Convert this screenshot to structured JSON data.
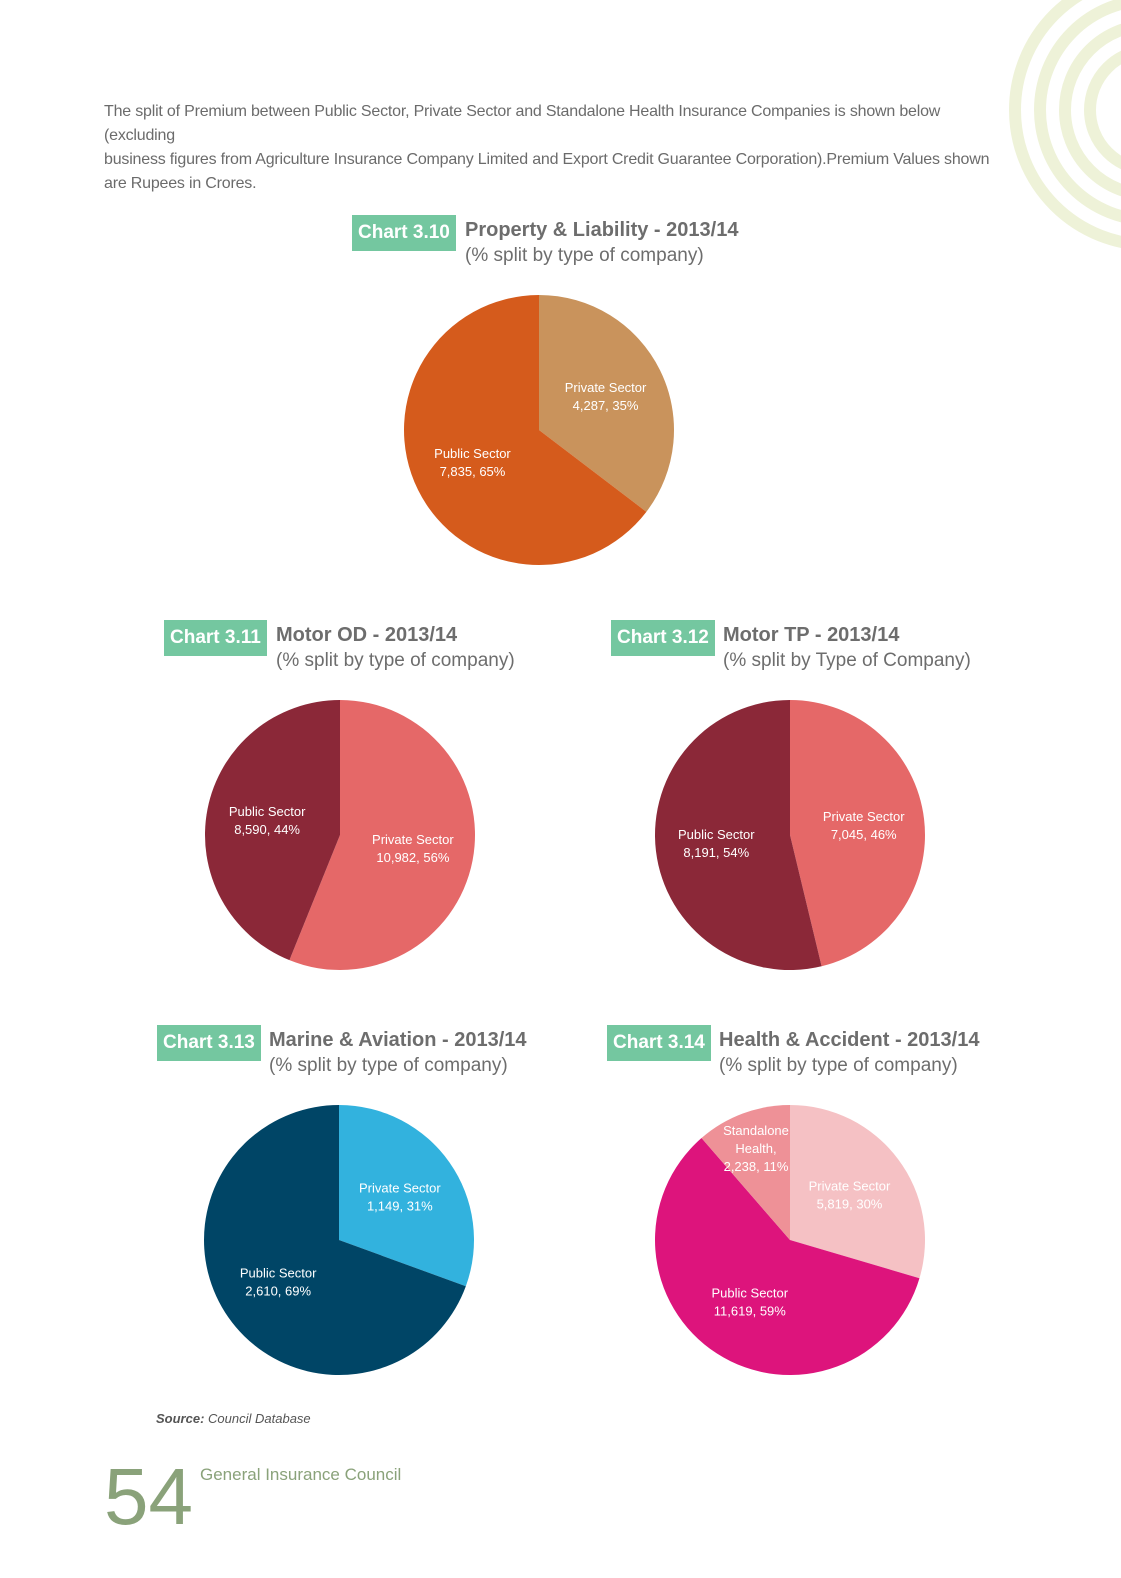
{
  "intro": {
    "line1": "The split of Premium between Public Sector, Private Sector and Standalone Health Insurance Companies is shown below (excluding",
    "line2": "business figures from Agriculture Insurance Company Limited and Export Credit Guarantee Corporation).Premium Values shown",
    "line3": "are Rupees in Crores."
  },
  "chart_data": [
    {
      "type": "pie",
      "badge": "Chart 3.10",
      "title": "Property & Liability - 2013/14",
      "subtitle": "(% split by type of company)",
      "slices": [
        {
          "name": "Private Sector",
          "value": 4287,
          "pct": 35,
          "label": "4,287, 35%",
          "color": "#c9935c"
        },
        {
          "name": "Public Sector",
          "value": 7835,
          "pct": 65,
          "label": "7,835, 65%",
          "color": "#d55b1c"
        }
      ]
    },
    {
      "type": "pie",
      "badge": "Chart 3.11",
      "title": "Motor OD - 2013/14",
      "subtitle": "(% split by type of company)",
      "slices": [
        {
          "name": "Private Sector",
          "value": 10982,
          "pct": 56,
          "label": "10,982, 56%",
          "color": "#e56868"
        },
        {
          "name": "Public Sector",
          "value": 8590,
          "pct": 44,
          "label": "8,590, 44%",
          "color": "#8b2838"
        }
      ]
    },
    {
      "type": "pie",
      "badge": "Chart 3.12",
      "title": "Motor TP - 2013/14",
      "subtitle": "(% split by Type of Company)",
      "slices": [
        {
          "name": "Private Sector",
          "value": 7045,
          "pct": 46,
          "label": "7,045, 46%",
          "color": "#e56868"
        },
        {
          "name": "Public Sector",
          "value": 8191,
          "pct": 54,
          "label": "8,191, 54%",
          "color": "#8b2838"
        }
      ]
    },
    {
      "type": "pie",
      "badge": "Chart 3.13",
      "title": "Marine & Aviation - 2013/14",
      "subtitle": "(% split by type of company)",
      "slices": [
        {
          "name": "Private Sector",
          "value": 1149,
          "pct": 31,
          "label": "1,149, 31%",
          "color": "#32b2de"
        },
        {
          "name": "Public Sector",
          "value": 2610,
          "pct": 69,
          "label": "2,610, 69%",
          "color": "#004566"
        }
      ]
    },
    {
      "type": "pie",
      "badge": "Chart 3.14",
      "title": "Health & Accident - 2013/14",
      "subtitle": "(% split by type of company)",
      "slices": [
        {
          "name": "Private Sector",
          "value": 5819,
          "pct": 30,
          "label": "5,819, 30%",
          "color": "#f5c1c4"
        },
        {
          "name": "Public Sector",
          "value": 11619,
          "pct": 59,
          "label": "11,619, 59%",
          "color": "#dd147c"
        },
        {
          "name": "Standalone Health,",
          "value": 2238,
          "pct": 11,
          "label": "2,238, 11%",
          "color": "#ee9197"
        }
      ]
    }
  ],
  "source": {
    "label": "Source:",
    "text": "Council Database"
  },
  "footer": {
    "page_number": "54",
    "org": "General Insurance Council"
  }
}
